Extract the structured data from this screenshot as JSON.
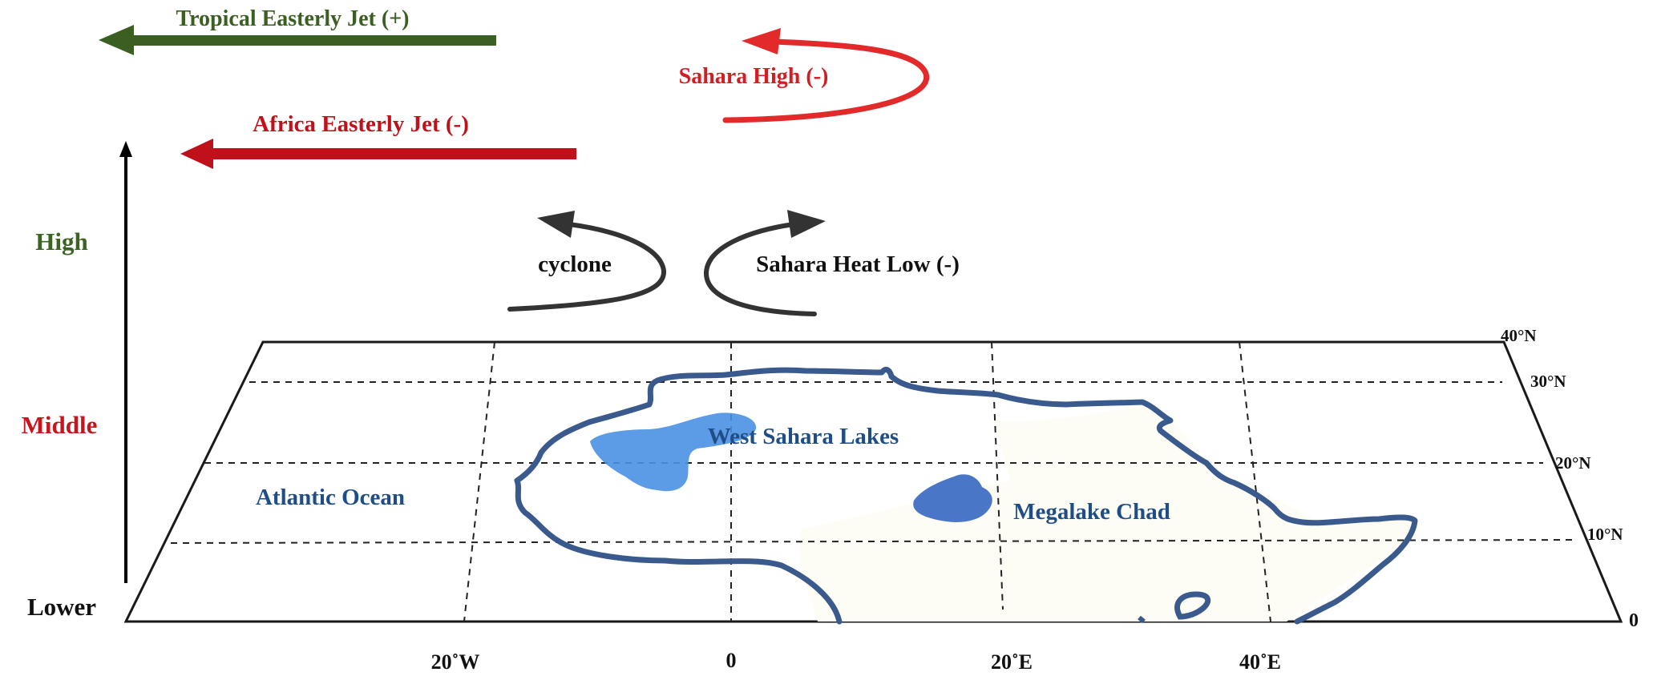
{
  "vertical_axis": {
    "levels": [
      {
        "label": "High",
        "color": "#3b6322"
      },
      {
        "label": "Middle",
        "color": "#c8141c"
      },
      {
        "label": "Lower",
        "color": "#111111"
      }
    ]
  },
  "upper_level": {
    "tropical_easterly_jet": {
      "label": "Tropical Easterly Jet (+)",
      "color": "#3b5e22"
    },
    "sahara_high": {
      "label": "Sahara High (-)",
      "color": "#e02a2a"
    }
  },
  "middle_level": {
    "african_easterly_jet": {
      "label": "Africa Easterly Jet (-)",
      "color": "#c0111b"
    }
  },
  "lower_level": {
    "cyclone": {
      "label": "cyclone",
      "color": "#333333"
    },
    "sahara_heat_low": {
      "label": "Sahara Heat Low (-)",
      "color": "#333333"
    }
  },
  "map": {
    "latitude_labels": [
      "40°N",
      "30°N",
      "20°N",
      "10°N",
      "0"
    ],
    "longitude_labels": [
      "20˚W",
      "0",
      "20˚E",
      "40˚E"
    ],
    "region_labels": {
      "atlantic_ocean": "Atlantic Ocean",
      "west_sahara_lakes": "West Sahara Lakes",
      "megalake_chad": "Megalake Chad"
    },
    "colors": {
      "coastline": "#3a5a8e",
      "west_sahara_lakes": "#4a90e2",
      "megalake_chad": "#4a76c8",
      "text": "#1f4e87"
    }
  }
}
